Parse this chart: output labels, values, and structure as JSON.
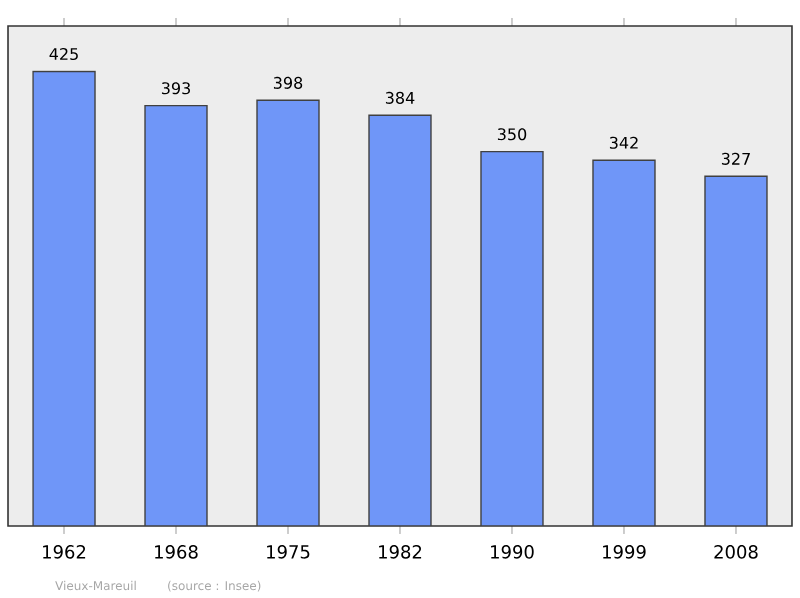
{
  "chart_data": {
    "type": "bar",
    "categories": [
      "1962",
      "1968",
      "1975",
      "1982",
      "1990",
      "1999",
      "2008"
    ],
    "values": [
      425,
      393,
      398,
      384,
      350,
      342,
      327
    ],
    "color": "#6f96f8",
    "data_labels": true,
    "annotations": [
      "Vieux-Mareuil",
      "(source : Insee)"
    ]
  }
}
